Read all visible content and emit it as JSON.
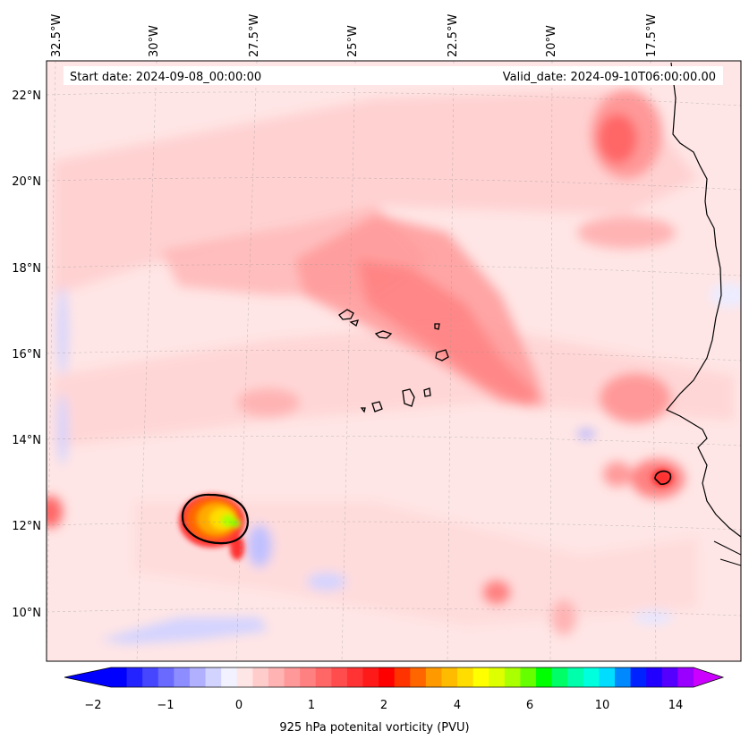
{
  "header": {
    "start_date": "Start date: 2024-09-08_00:00:00",
    "valid_date": "Valid_date: 2024-09-10T06:00:00.00"
  },
  "map": {
    "lon_labels": [
      "32.5°W",
      "30°W",
      "27.5°W",
      "25°W",
      "22.5°W",
      "20°W",
      "17.5°W"
    ],
    "lat_labels": [
      "22°N",
      "20°N",
      "18°N",
      "16°N",
      "14°N",
      "12°N",
      "10°N"
    ]
  },
  "colorbar": {
    "label": "925 hPa potenital vorticity (PVU)",
    "tick_labels": [
      "−2",
      "−1",
      "0",
      "1",
      "2",
      "4",
      "6",
      "10",
      "14"
    ],
    "colors": [
      "#0000ff",
      "#2323ff",
      "#4646ff",
      "#6a6aff",
      "#8d8dff",
      "#b0b0ff",
      "#d3d3ff",
      "#f1f1ff",
      "#ffe6e6",
      "#ffcccc",
      "#ffb3b3",
      "#ff9999",
      "#ff8080",
      "#ff6666",
      "#ff4d4d",
      "#ff3333",
      "#ff1a1a",
      "#ff0000",
      "#ff3300",
      "#ff6600",
      "#ff9900",
      "#ffbb00",
      "#ffdd00",
      "#ffff00",
      "#ddff00",
      "#aaff00",
      "#66ff00",
      "#00ff00",
      "#00ff66",
      "#00ffaa",
      "#00ffdd",
      "#00ddff",
      "#0088ff",
      "#0022ff",
      "#2200ff",
      "#5500ff",
      "#9900ff"
    ]
  }
}
